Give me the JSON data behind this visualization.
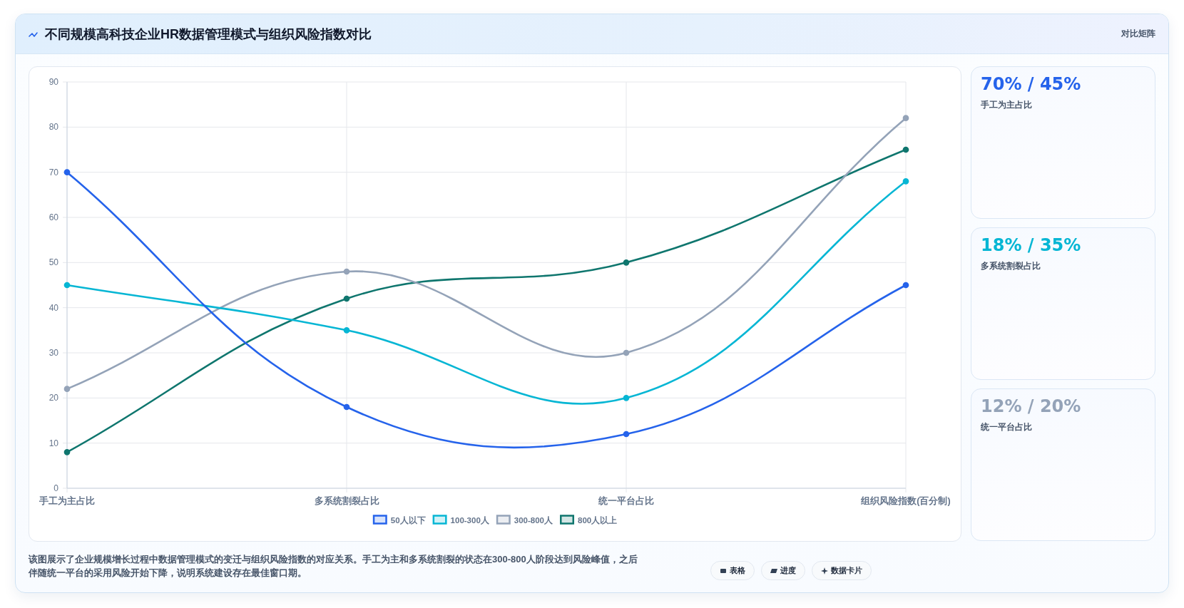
{
  "chart_data": [
    {
      "type": "line",
      "title": "不同规模高科技企业HR数据管理模式与组织风险指数对比",
      "categories": [
        "手工为主占比",
        "多系统割裂占比",
        "统一平台占比",
        "组织风险指数(百分制)"
      ],
      "series": [
        {
          "name": "50人以下",
          "color": "#2563eb",
          "values": [
            70,
            18,
            12,
            45
          ]
        },
        {
          "name": "100-300人",
          "color": "#06b6d4",
          "values": [
            45,
            35,
            20,
            68
          ]
        },
        {
          "name": "300-800人",
          "color": "#94a3b8",
          "values": [
            22,
            48,
            30,
            82
          ]
        },
        {
          "name": "800人以上",
          "color": "#0f766e",
          "values": [
            8,
            42,
            50,
            75
          ]
        }
      ],
      "ylim": [
        0,
        90
      ],
      "yticks": [
        0,
        10,
        20,
        30,
        40,
        50,
        60,
        70,
        80,
        90
      ],
      "grid": true,
      "legend": "bottom",
      "marker": "circle",
      "line_style": "solid",
      "annotations": [
        "对比矩阵",
        "该图展示了企业规模增长过程中数据管理模式的变迁与组织风险指数的对应关系。手工为主和多系统割裂的状态在300-800人阶段达到风险峰值，之后伴随统一平台的采用风险开始下降，说明系统建设存在最佳窗口期。",
        "表格",
        "进度",
        "数据卡片"
      ]
    },
    {
      "type": "other",
      "title": "70% / 45%",
      "subtitle": "手工为主占比"
    },
    {
      "type": "other",
      "title": "18% / 35%",
      "subtitle": "多系统割裂占比"
    },
    {
      "type": "other",
      "title": "12% / 20%",
      "subtitle": "统一平台占比"
    }
  ]
}
